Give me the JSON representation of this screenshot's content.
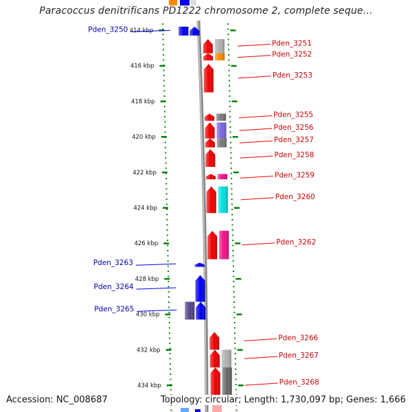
{
  "title": "Paracoccus denitrificans PD1222 chromosome 2, complete seque...",
  "footer": {
    "accession": "Accession: NC_008687",
    "topology": "Topology: circular; Length: 1,730,097 bp; Genes: 1,666"
  },
  "colors": {
    "forward": "#0000ee",
    "reverse": "#ee0000",
    "backbone": "#888888",
    "ring_dots": "#008000"
  },
  "ticks": [
    {
      "kbp": 414,
      "label": "414 kbp"
    },
    {
      "kbp": 416,
      "label": "416 kbp"
    },
    {
      "kbp": 418,
      "label": "418 kbp"
    },
    {
      "kbp": 420,
      "label": "420 kbp"
    },
    {
      "kbp": 422,
      "label": "422 kbp"
    },
    {
      "kbp": 424,
      "label": "424 kbp"
    },
    {
      "kbp": 426,
      "label": "426 kbp"
    },
    {
      "kbp": 428,
      "label": "428 kbp"
    },
    {
      "kbp": 430,
      "label": "430 kbp"
    },
    {
      "kbp": 432,
      "label": "432 kbp"
    },
    {
      "kbp": 434,
      "label": "434 kbp"
    }
  ],
  "genes": [
    {
      "name": "Pden_3250",
      "strand": "+",
      "start": 413.8,
      "end": 414.3,
      "cog": "#0000ee"
    },
    {
      "name": "Pden_3251",
      "strand": "-",
      "start": 414.5,
      "end": 415.3,
      "cog": "#b0b0b0"
    },
    {
      "name": "Pden_3252",
      "strand": "-",
      "start": 415.3,
      "end": 415.7,
      "cog": "#ff8800"
    },
    {
      "name": "Pden_3253",
      "strand": "-",
      "start": 415.9,
      "end": 417.5,
      "cog": ""
    },
    {
      "name": "Pden_3255",
      "strand": "-",
      "start": 418.7,
      "end": 419.1,
      "cog": "#777777"
    },
    {
      "name": "Pden_3256",
      "strand": "-",
      "start": 419.2,
      "end": 420.1,
      "cog": "#7766dd"
    },
    {
      "name": "Pden_3257",
      "strand": "-",
      "start": 420.1,
      "end": 420.6,
      "cog": "#777777"
    },
    {
      "name": "Pden_3258",
      "strand": "-",
      "start": 420.7,
      "end": 421.7,
      "cog": ""
    },
    {
      "name": "Pden_3259",
      "strand": "-",
      "start": 422.1,
      "end": 422.4,
      "cog": "#ee1188"
    },
    {
      "name": "Pden_3260",
      "strand": "-",
      "start": 422.8,
      "end": 424.3,
      "cog": "#00dddd"
    },
    {
      "name": "Pden_3262",
      "strand": "-",
      "start": 425.3,
      "end": 426.9,
      "cog": "#ee1188"
    },
    {
      "name": "Pden_3263",
      "strand": "+",
      "start": 427.1,
      "end": 427.3,
      "cog": ""
    },
    {
      "name": "Pden_3264",
      "strand": "+",
      "start": 427.8,
      "end": 429.3,
      "cog": ""
    },
    {
      "name": "Pden_3265",
      "strand": "+",
      "start": 429.3,
      "end": 430.3,
      "cog": "#554488"
    },
    {
      "name": "Pden_3266",
      "strand": "-",
      "start": 431.0,
      "end": 432.0,
      "cog": ""
    },
    {
      "name": "Pden_3267",
      "strand": "-",
      "start": 432.0,
      "end": 433.0,
      "cog": "#b0b0b0"
    },
    {
      "name": "Pden_3268",
      "strand": "-",
      "start": 433.0,
      "end": 435.0,
      "cog": "#666666"
    }
  ]
}
